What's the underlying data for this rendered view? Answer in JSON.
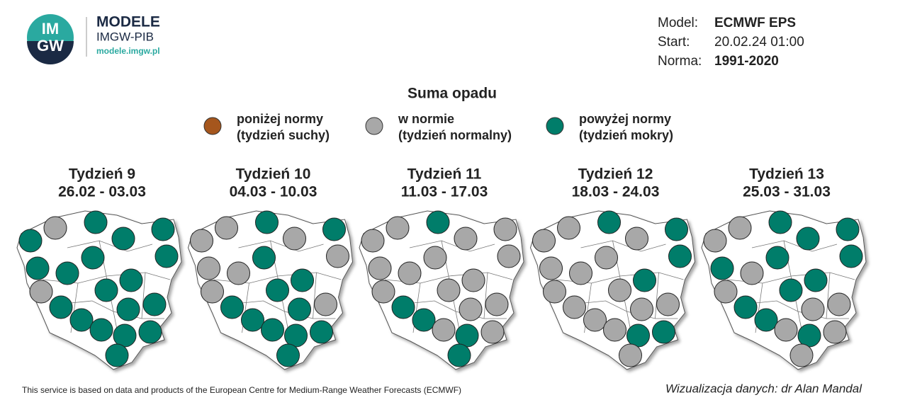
{
  "header": {
    "logo_text_top": "IM",
    "logo_text_bottom": "GW",
    "brand": "MODELE",
    "org": "IMGW-PIB",
    "url": "modele.imgw.pl"
  },
  "info": [
    {
      "label": "Model:",
      "value": "ECMWF EPS",
      "bold": true
    },
    {
      "label": "Start:",
      "value": "20.02.24 01:00",
      "bold": false
    },
    {
      "label": "Norma:",
      "value": "1991-2020",
      "bold": true
    }
  ],
  "title": "Suma opadu",
  "legend": [
    {
      "color": "#a5561d",
      "line1": "poniżej normy",
      "line2": "(tydzień suchy)"
    },
    {
      "color": "#a8a8a8",
      "line1": "w normie",
      "line2": "(tydzień normalny)"
    },
    {
      "color": "#007d6a",
      "line1": "powyżej normy",
      "line2": "(tydzień mokry)"
    }
  ],
  "panels": [
    {
      "week": "Tydzień 9",
      "dates": "26.02 - 03.03",
      "colors": [
        "#007d6a",
        "#a8a8a8",
        "#007d6a",
        "#007d6a",
        "#007d6a",
        "#007d6a",
        "#007d6a",
        "#007d6a",
        "#007d6a",
        "#007d6a",
        "#a8a8a8",
        "#007d6a",
        "#007d6a",
        "#007d6a",
        "#007d6a",
        "#007d6a",
        "#007d6a",
        "#007d6a",
        "#007d6a",
        "#007d6a"
      ]
    },
    {
      "week": "Tydzień 10",
      "dates": "04.03 - 10.03",
      "colors": [
        "#a8a8a8",
        "#a8a8a8",
        "#007d6a",
        "#a8a8a8",
        "#007d6a",
        "#a8a8a8",
        "#007d6a",
        "#a8a8a8",
        "#a8a8a8",
        "#007d6a",
        "#a8a8a8",
        "#007d6a",
        "#a8a8a8",
        "#007d6a",
        "#007d6a",
        "#007d6a",
        "#007d6a",
        "#007d6a",
        "#007d6a",
        "#007d6a"
      ]
    },
    {
      "week": "Tydzień 11",
      "dates": "11.03 - 17.03",
      "colors": [
        "#a8a8a8",
        "#a8a8a8",
        "#007d6a",
        "#a8a8a8",
        "#a8a8a8",
        "#a8a8a8",
        "#a8a8a8",
        "#a8a8a8",
        "#a8a8a8",
        "#a8a8a8",
        "#a8a8a8",
        "#a8a8a8",
        "#a8a8a8",
        "#007d6a",
        "#a8a8a8",
        "#007d6a",
        "#a8a8a8",
        "#007d6a",
        "#a8a8a8",
        "#007d6a"
      ]
    },
    {
      "week": "Tydzień 12",
      "dates": "18.03 - 24.03",
      "colors": [
        "#a8a8a8",
        "#a8a8a8",
        "#007d6a",
        "#a8a8a8",
        "#007d6a",
        "#a8a8a8",
        "#a8a8a8",
        "#007d6a",
        "#a8a8a8",
        "#007d6a",
        "#a8a8a8",
        "#a8a8a8",
        "#a8a8a8",
        "#a8a8a8",
        "#a8a8a8",
        "#a8a8a8",
        "#a8a8a8",
        "#007d6a",
        "#007d6a",
        "#a8a8a8"
      ]
    },
    {
      "week": "Tydzień 13",
      "dates": "25.03 - 31.03",
      "colors": [
        "#a8a8a8",
        "#a8a8a8",
        "#007d6a",
        "#007d6a",
        "#007d6a",
        "#007d6a",
        "#007d6a",
        "#007d6a",
        "#a8a8a8",
        "#007d6a",
        "#a8a8a8",
        "#007d6a",
        "#a8a8a8",
        "#007d6a",
        "#a8a8a8",
        "#007d6a",
        "#a8a8a8",
        "#007d6a",
        "#a8a8a8",
        "#a8a8a8"
      ]
    }
  ],
  "footer_left": "This service is based on data and products of the European Centre for Medium-Range Weather Forecasts (ECMWF)",
  "footer_right": "Wizualizacja danych: dr Alan Mandal"
}
